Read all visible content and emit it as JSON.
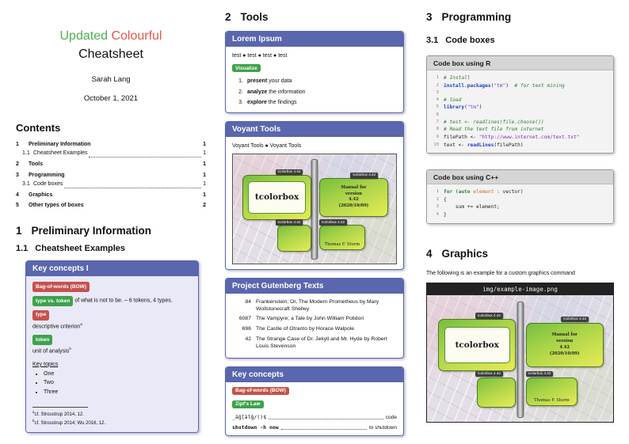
{
  "left": {
    "title": {
      "word1": "Updated",
      "word2": "Colourful",
      "word3": "Cheatsheet"
    },
    "author": "Sarah Lang",
    "date": "October 1, 2021",
    "contents_heading": "Contents",
    "toc": [
      {
        "num": "1",
        "label": "Preliminary Information",
        "page": "1"
      },
      {
        "num": "1.1",
        "label": "Cheatsheet Examples",
        "page": "1"
      },
      {
        "num": "2",
        "label": "Tools",
        "page": "1"
      },
      {
        "num": "3",
        "label": "Programming",
        "page": "1"
      },
      {
        "num": "3.1",
        "label": "Code boxes",
        "page": "1"
      },
      {
        "num": "4",
        "label": "Graphics",
        "page": "1"
      },
      {
        "num": "5",
        "label": "Other types of boxes",
        "page": "2"
      }
    ],
    "section1": {
      "num": "1",
      "title": "Preliminary Information"
    },
    "section11": {
      "num": "1.1",
      "title": "Cheatsheet Examples"
    },
    "box": {
      "title": "Key concepts I",
      "badge_bow": "Bag-of-words (BOW)",
      "badge_type_token": "type vs. token",
      "type_token_text": "of what is not to be. – 6 tokens, 4 types.",
      "badge_type": "type",
      "type_text": "descriptive criterion",
      "type_sup": "a",
      "badge_token": "token",
      "token_text": "unit of analysis",
      "token_sup": "b",
      "key_topics_heading": "Key topics",
      "topics": [
        "One",
        "Two",
        "Three"
      ],
      "footnotes": [
        {
          "sup": "a",
          "text": "cf. Stroustrup 2014, 12."
        },
        {
          "sup": "b",
          "text": "cf. Stroustrup 2014; Wu 2016, 12."
        }
      ]
    }
  },
  "middle": {
    "section": {
      "num": "2",
      "title": "Tools"
    },
    "lorem": {
      "title": "Lorem Ipsum",
      "tests": "test ● test ● test ● test",
      "badge": "Visualize",
      "items": [
        {
          "num": "1.",
          "bold": "present",
          "rest": " your data"
        },
        {
          "num": "2.",
          "bold": "analyze",
          "rest": " the information"
        },
        {
          "num": "3.",
          "bold": "explore",
          "rest": " the findings"
        }
      ]
    },
    "voyant": {
      "title": "Voyant Tools",
      "links": "Voyant Tools ● Voyant Tools"
    },
    "gutenberg": {
      "title": "Project Gutenberg Texts",
      "rows": [
        {
          "id": "84",
          "text": "Frankenstein; Or, The Modern Prometheus by Mary Wollstonecraft Shelley"
        },
        {
          "id": "6087",
          "text": "The Vampyre; a Tale by John William Polidori"
        },
        {
          "id": "696",
          "text": "The Castle of Otranto by Horace Walpole"
        },
        {
          "id": "42",
          "text": "The Strange Case of Dr. Jekyll and Mr. Hyde by Robert Louis Stevenson"
        }
      ]
    },
    "keyconcepts": {
      "title": "Key concepts",
      "badge_bow": "Bag-of-words (BOW)",
      "badge_zipf": "Zipf's Law",
      "lines": [
        {
          "code": "_äĝ[älĝ/()$",
          "label": "code"
        },
        {
          "code": "shutdown -h now",
          "label": "to shutdown"
        }
      ]
    }
  },
  "right": {
    "section": {
      "num": "3",
      "title": "Programming"
    },
    "subsection": {
      "num": "3.1",
      "title": "Code boxes"
    },
    "rbox": {
      "title": "Code box using R",
      "lines": [
        {
          "n": "1",
          "s": [
            "# Install"
          ]
        },
        {
          "n": "2",
          "s": [
            "install.packages",
            "(",
            "\"tm\"",
            ")",
            "  # for text mining"
          ]
        },
        {
          "n": "3",
          "s": [
            ""
          ]
        },
        {
          "n": "4",
          "s": [
            "# load"
          ]
        },
        {
          "n": "5",
          "s": [
            "library",
            "(",
            "\"tm\"",
            ")"
          ]
        },
        {
          "n": "6",
          "s": [
            ""
          ]
        },
        {
          "n": "7",
          "s": [
            "# test <- readlines(file.choose())"
          ]
        },
        {
          "n": "8",
          "s": [
            "# Read the text file from internet"
          ]
        },
        {
          "n": "9",
          "s": [
            "filePath <- ",
            "\"http://www.internet.com/text.txt\""
          ]
        },
        {
          "n": "10",
          "s": [
            "text <- ",
            "readLines",
            "(filePath)"
          ]
        }
      ]
    },
    "cppbox": {
      "title": "Code box using C++",
      "lines": [
        {
          "n": "1",
          "s": [
            "for",
            " (",
            "auto",
            " ",
            "element",
            " : vector)"
          ]
        },
        {
          "n": "2",
          "s": [
            "{"
          ]
        },
        {
          "n": "3",
          "s": [
            "    sum += element;"
          ]
        },
        {
          "n": "4",
          "s": [
            "}"
          ]
        }
      ]
    },
    "graphics": {
      "num": "4",
      "title": "Graphics"
    },
    "caption": "The following is an example for a custom graphics command",
    "image_title": "img/example-image.png"
  },
  "tcb": {
    "bar": "tcolorbox 4.42",
    "name": "tcolorbox",
    "manual": [
      "Manual for",
      "version",
      "4.42",
      "(2020/10/09)"
    ],
    "author": "Thomas F. Sturm"
  }
}
